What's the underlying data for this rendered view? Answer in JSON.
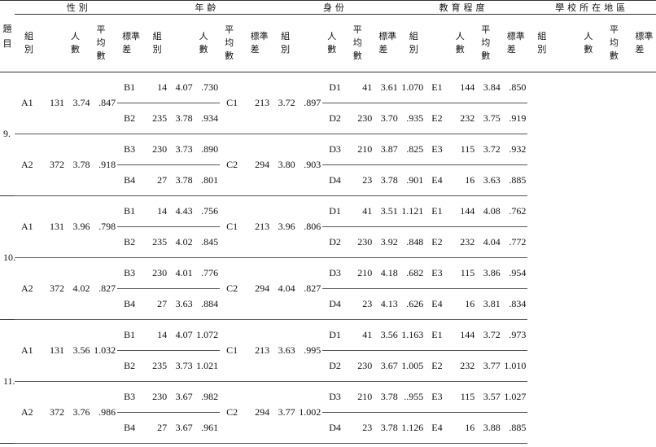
{
  "header": {
    "item": "題目",
    "groups": [
      "性別",
      "年齡",
      "身份",
      "教育程度",
      "學校所在地區"
    ],
    "subheaders": [
      "組別",
      "人數",
      "平均數",
      "標準差"
    ]
  },
  "rows": [
    {
      "item": "9.",
      "a": [
        [
          "A1",
          "131",
          "3.74",
          ".847"
        ],
        [
          "A2",
          "372",
          "3.78",
          ".918"
        ]
      ],
      "b": [
        [
          "B1",
          "14",
          "4.07",
          ".730"
        ],
        [
          "B2",
          "235",
          "3.78",
          ".934"
        ],
        [
          "B3",
          "230",
          "3.73",
          ".890"
        ],
        [
          "B4",
          "27",
          "3.78",
          ".801"
        ]
      ],
      "c": [
        [
          "C1",
          "213",
          "3.72",
          ".897"
        ],
        [
          "C2",
          "294",
          "3.80",
          ".903"
        ]
      ],
      "d": [
        [
          "D1",
          "41",
          "3.61",
          "1.070"
        ],
        [
          "D2",
          "230",
          "3.70",
          ".935"
        ],
        [
          "D3",
          "210",
          "3.87",
          ".825"
        ],
        [
          "D4",
          "23",
          "3.78",
          ".901"
        ]
      ],
      "e": [
        [
          "E1",
          "144",
          "3.84",
          ".850"
        ],
        [
          "E2",
          "232",
          "3.75",
          ".919"
        ],
        [
          "E3",
          "115",
          "3.72",
          ".932"
        ],
        [
          "E4",
          "16",
          "3.63",
          ".885"
        ]
      ]
    },
    {
      "item": "10.",
      "a": [
        [
          "A1",
          "131",
          "3.96",
          ".798"
        ],
        [
          "A2",
          "372",
          "4.02",
          ".827"
        ]
      ],
      "b": [
        [
          "B1",
          "14",
          "4.43",
          ".756"
        ],
        [
          "B2",
          "235",
          "4.02",
          ".845"
        ],
        [
          "B3",
          "230",
          "4.01",
          ".776"
        ],
        [
          "B4",
          "27",
          "3.63",
          ".884"
        ]
      ],
      "c": [
        [
          "C1",
          "213",
          "3.96",
          ".806"
        ],
        [
          "C2",
          "294",
          "4.04",
          ".827"
        ]
      ],
      "d": [
        [
          "D1",
          "41",
          "3.51",
          "1.121"
        ],
        [
          "D2",
          "230",
          "3.92",
          ".848"
        ],
        [
          "D3",
          "210",
          "4.18",
          ".682"
        ],
        [
          "D4",
          "23",
          "4.13",
          ".626"
        ]
      ],
      "e": [
        [
          "E1",
          "144",
          "4.08",
          ".762"
        ],
        [
          "E2",
          "232",
          "4.04",
          ".772"
        ],
        [
          "E3",
          "115",
          "3.86",
          ".954"
        ],
        [
          "E4",
          "16",
          "3.81",
          ".834"
        ]
      ]
    },
    {
      "item": "11.",
      "a": [
        [
          "A1",
          "131",
          "3.56",
          "1.032"
        ],
        [
          "A2",
          "372",
          "3.76",
          ".986"
        ]
      ],
      "b": [
        [
          "B1",
          "14",
          "4.07",
          "1.072"
        ],
        [
          "B2",
          "235",
          "3.73",
          "1.021"
        ],
        [
          "B3",
          "230",
          "3.67",
          ".982"
        ],
        [
          "B4",
          "27",
          "3.67",
          ".961"
        ]
      ],
      "c": [
        [
          "C1",
          "213",
          "3.63",
          ".995"
        ],
        [
          "C2",
          "294",
          "3.77",
          "1.002"
        ]
      ],
      "d": [
        [
          "D1",
          "41",
          "3.56",
          "1.163"
        ],
        [
          "D2",
          "230",
          "3.67",
          "1.005"
        ],
        [
          "D3",
          "210",
          "3.78",
          "..955"
        ],
        [
          "D4",
          "23",
          "3.78",
          "1.126"
        ]
      ],
      "e": [
        [
          "E1",
          "144",
          "3.72",
          ".973"
        ],
        [
          "E2",
          "232",
          "3.77",
          "1.010"
        ],
        [
          "E3",
          "115",
          "3.57",
          "1.027"
        ],
        [
          "E4",
          "16",
          "3.88",
          ".885"
        ]
      ]
    }
  ]
}
